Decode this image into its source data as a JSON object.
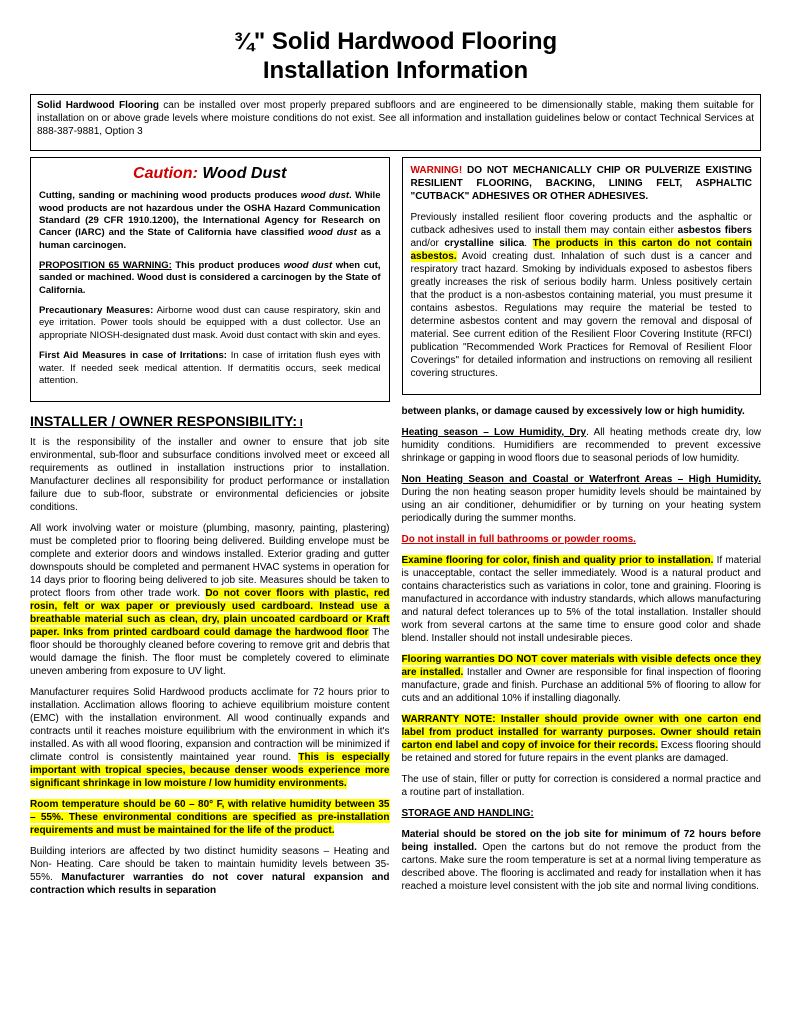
{
  "title_line1": "¾\" Solid Hardwood Flooring",
  "title_line2": "Installation Information",
  "intro": {
    "lead": "Solid Hardwood Flooring",
    "body": " can be installed over most properly prepared subfloors and are engineered to be dimensionally stable, making them suitable for installation on or above grade levels where moisture conditions do not exist. See all information and installation guidelines below or contact Technical Services at 888-387-9881, Option 3"
  },
  "caution": {
    "label_red": "Caution:",
    "label_rest": " Wood Dust",
    "p1a": "Cutting, sanding or machining wood products produces ",
    "p1b": "wood dust",
    "p1c": ".  While wood products are not hazardous under the OSHA Hazard Communication Standard (29 CFR 1910.1200), the International Agency for Research on Cancer (IARC) and the State of California have classified ",
    "p1d": "wood dust",
    "p1e": " as a human carcinogen.",
    "p2a": "PROPOSITION 65 WARNING:",
    "p2b": " This product produces ",
    "p2c": "wood dust",
    "p2d": " when cut, sanded or machined. Wood dust is considered a carcinogen by the State of California.",
    "p3a": "Precautionary Measures:",
    "p3b": " Airborne wood dust can cause respiratory, skin and eye irritation. Power tools should be equipped with a dust collector. Use an appropriate NIOSH-designated dust mask. Avoid dust contact with skin and eyes.",
    "p4a": "First Aid Measures in case of Irritations:",
    "p4b": " In case of irritation flush eyes with water. If needed seek medical attention. If dermatitis occurs, seek medical attention."
  },
  "warning": {
    "lead": "WARNING!",
    "head": " DO NOT MECHANICALLY CHIP OR PULVERIZE EXISTING RESILIENT FLOORING, BACKING, LINING FELT, ASPHALTIC \"CUTBACK\" ADHESIVES OR OTHER ADHESIVES.",
    "body1": "Previously installed resilient floor covering products and the asphaltic or cutback adhesives used to install them may contain either ",
    "body1b": "asbestos fibers",
    "body1c": " and/or ",
    "body1d": "crystalline silica",
    "body1e": ". ",
    "hl": "The products in this carton do not contain asbestos.",
    "body2": " Avoid creating dust. Inhalation of such dust is a cancer and respiratory tract hazard. Smoking by individuals exposed to asbestos fibers greatly increases the risk of serious bodily harm. Unless positively certain that the product is a non-asbestos containing material, you must presume it contains asbestos. Regulations may require the material be tested to determine asbestos content and may govern the removal and disposal of material. See current edition of the Resilient Floor Covering Institute (RFCI) publication \"Recommended Work Practices for Removal of Resilient Floor Coverings\" for detailed information and instructions on removing all resilient covering structures."
  },
  "left": {
    "section_head": "INSTALLER / OWNER RESPONSIBILITY:",
    "section_head_suffix": " I",
    "p1": "It is the responsibility of the installer and owner to ensure that job site environmental, sub-floor and subsurface conditions involved meet or exceed all requirements as outlined in installation instructions prior to installation. Manufacturer declines all responsibility for product performance or installation failure due to sub-floor, substrate or environmental deficiencies or jobsite conditions.",
    "p2a": "All work involving water or moisture (plumbing, masonry, painting, plastering) must be completed prior to flooring being delivered. Building envelope must be complete and   exterior doors and windows installed. Exterior grading and gutter downspouts should be completed and permanent HVAC systems in operation for 14 days prior to flooring being delivered to job site. Measures should be taken to protect floors from other trade work.  ",
    "p2hl": "Do not cover floors with plastic, red rosin, felt or wax paper or previously used cardboard. Instead use a breathable material such as clean, dry, plain uncoated cardboard or Kraft paper.  Inks from printed cardboard could damage the hardwood floor",
    "p2b": " The floor should be thoroughly cleaned before covering to remove grit and debris that would damage the finish. The floor must be completely covered to eliminate uneven ambering from exposure to UV light.",
    "p3a": "Manufacturer requires Solid Hardwood products acclimate for 72 hours prior to installation. Acclimation allows flooring to achieve equilibrium moisture content (EMC) with the installation environment. All wood continually expands and contracts until it reaches moisture equilibrium with the environment in which it's installed. As with all wood flooring, expansion and contraction will be minimized if climate control is consistently maintained year round. ",
    "p3hl": "This is especially important with tropical species, because denser woods experience more significant shrinkage in low moisture / low humidity environments.",
    "p4hl": "Room temperature should be 60 – 80° F, with relative humidity between 35 – 55%. These environmental conditions are specified as pre-installation requirements and must be maintained for the life of the product.",
    "p5a": "Building interiors are affected by two distinct humidity seasons – Heating and Non- Heating.  Care should be taken to maintain humidity levels between 35-55%. ",
    "p5b": "Manufacturer warranties do not cover natural expansion and contraction which results in separation"
  },
  "right": {
    "cont": "between planks, or damage caused by excessively low or high humidity.",
    "p1a": "Heating season – Low Humidity, Dry",
    "p1b": ". All heating methods create dry, low humidity conditions. Humidifiers are recommended to prevent excessive shrinkage or gapping in wood floors due to seasonal periods of low humidity.",
    "p2a": "Non Heating Season and Coastal or Waterfront Areas – High Humidity.",
    "p2b": " During the non heating season proper humidity levels should be maintained by using an air conditioner, dehumidifier or by turning on your heating system periodically during the summer months.",
    "p3": "Do not install in full bathrooms or powder rooms.",
    "p4hl": "Examine flooring for color, finish and quality prior to installation.",
    "p4b": " If material is unacceptable, contact the seller immediately. Wood is a natural product and contains characteristics such as variations in color, tone and graining. Flooring is manufactured in accordance with industry standards, which allows manufacturing and natural defect tolerances up to 5% of the total installation. Installer should work from several cartons at the same time to ensure good color and shade blend. Installer should not install undesirable pieces.",
    "p5hl": "Flooring warranties DO NOT cover materials with visible defects once they are installed.",
    "p5b": " Installer and Owner are responsible for final inspection of flooring manufacture, grade and finish. Purchase an additional 5% of flooring to allow for cuts and an additional 10% if installing diagonally.",
    "p6hl": "WARRANTY NOTE: Installer should provide owner with one carton end label from product installed for warranty purposes. Owner should retain carton end label and copy of invoice for their records.",
    "p6b": " Excess flooring should be retained and stored for future repairs in the event planks are damaged.",
    "p7": "The use of stain, filler or putty for correction is considered a normal practice and a routine part of installation.",
    "sh": "STORAGE AND HANDLING:",
    "p8a": "Material should be stored on the job site for minimum of 72 hours before being installed.",
    "p8b": " Open the cartons but do not remove the product from the cartons. Make sure the room temperature is set at a normal living temperature as described above. The flooring is acclimated and ready for installation when it has reached a moisture level consistent with the job site and normal living conditions."
  }
}
